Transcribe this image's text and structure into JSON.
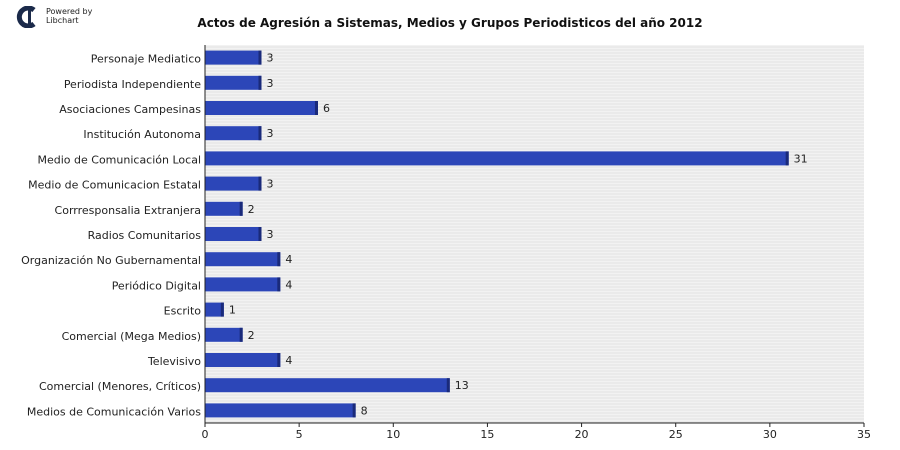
{
  "logo": {
    "line1": "Powered by",
    "line2": "Libchart"
  },
  "chart_data": {
    "type": "bar",
    "orientation": "horizontal",
    "title": "Actos de Agresión a Sistemas, Medios y Grupos Periodisticos del año 2012",
    "categories": [
      "Personaje Mediatico",
      "Periodista Independiente",
      "Asociaciones Campesinas",
      "Institución Autonoma",
      "Medio de Comunicación Local",
      "Medio de Comunicacion Estatal",
      "Corrresponsalia Extranjera",
      "Radios Comunitarios",
      "Organización No Gubernamental",
      "Periódico Digital",
      "Escrito",
      "Comercial (Mega Medios)",
      "Televisivo",
      "Comercial (Menores, Críticos)",
      "Medios de Comunicación Varios"
    ],
    "values": [
      3,
      3,
      6,
      3,
      31,
      3,
      2,
      3,
      4,
      4,
      1,
      2,
      4,
      13,
      8
    ],
    "xlim": [
      0,
      35
    ],
    "xticks": [
      "0",
      "5",
      "10",
      "15",
      "20",
      "25",
      "30",
      "35"
    ],
    "grid": true,
    "bar_color": "#2c46b8",
    "bar_edge_color": "#1a2a7a"
  }
}
